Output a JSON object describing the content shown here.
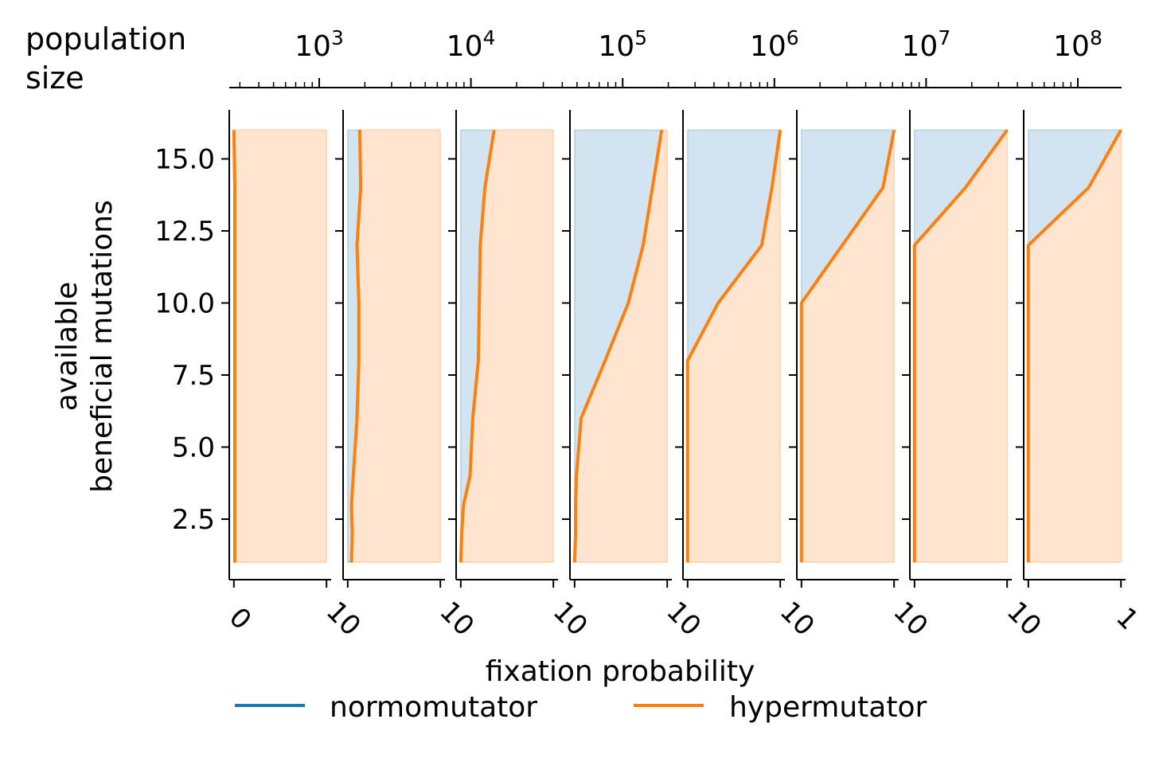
{
  "chart_data": {
    "type": "area",
    "top_axis": {
      "label": "population size",
      "label_lines": [
        "population",
        "size"
      ],
      "scale": "log",
      "tick_labels": [
        {
          "base": "10",
          "exp": "3",
          "value": 1000
        },
        {
          "base": "10",
          "exp": "4",
          "value": 10000
        },
        {
          "base": "10",
          "exp": "5",
          "value": 100000
        },
        {
          "base": "10",
          "exp": "6",
          "value": 1000000
        },
        {
          "base": "10",
          "exp": "7",
          "value": 10000000
        },
        {
          "base": "10",
          "exp": "8",
          "value": 100000000
        }
      ]
    },
    "xlabel": "fixation probability",
    "ylabel_lines": [
      "available",
      "beneficial mutations"
    ],
    "ylim": [
      0.4,
      16.7
    ],
    "yticks": [
      2.5,
      5.0,
      7.5,
      10.0,
      12.5,
      15.0
    ],
    "ytick_labels": [
      "2.5",
      "5.0",
      "7.5",
      "10.0",
      "12.5",
      "15.0"
    ],
    "xlim": [
      -0.05,
      1.05
    ],
    "x_tick_labels": [
      "0",
      "10",
      "10",
      "10",
      "10",
      "10",
      "10",
      "10",
      "1"
    ],
    "legend": [
      {
        "name": "normomutator",
        "color": "#1f77b4"
      },
      {
        "name": "hypermutator",
        "color": "#ff7f0e"
      }
    ],
    "legend_position": "bottom-center",
    "colors": {
      "normomutator": "#1f77b4",
      "hypermutator": "#ff7f0e"
    },
    "y": [
      1,
      2,
      3,
      4,
      6,
      8,
      10,
      12,
      14,
      16
    ],
    "panels": [
      {
        "hypermutator": [
          0.01,
          0.01,
          0.01,
          0.01,
          0.01,
          0.01,
          0.01,
          0.01,
          0.01,
          0.0
        ]
      },
      {
        "hypermutator": [
          0.04,
          0.05,
          0.04,
          0.06,
          0.1,
          0.12,
          0.12,
          0.1,
          0.14,
          0.13
        ]
      },
      {
        "hypermutator": [
          0.0,
          0.01,
          0.03,
          0.1,
          0.13,
          0.19,
          0.2,
          0.21,
          0.26,
          0.36
        ]
      },
      {
        "hypermutator": [
          0.0,
          0.01,
          0.01,
          0.02,
          0.07,
          0.33,
          0.58,
          0.74,
          0.84,
          0.94
        ]
      },
      {
        "hypermutator": [
          0.0,
          0.0,
          0.0,
          0.0,
          0.0,
          0.0,
          0.33,
          0.8,
          0.91,
          1.0
        ]
      },
      {
        "hypermutator": [
          0.0,
          0.0,
          0.0,
          0.0,
          0.0,
          0.0,
          0.0,
          0.44,
          0.88,
          1.0
        ]
      },
      {
        "hypermutator": [
          0.0,
          0.0,
          0.0,
          0.0,
          0.0,
          0.0,
          0.0,
          0.0,
          0.55,
          1.0
        ]
      },
      {
        "hypermutator": [
          0.0,
          0.0,
          0.0,
          0.0,
          0.0,
          0.0,
          0.0,
          0.0,
          0.65,
          1.0
        ]
      }
    ]
  }
}
